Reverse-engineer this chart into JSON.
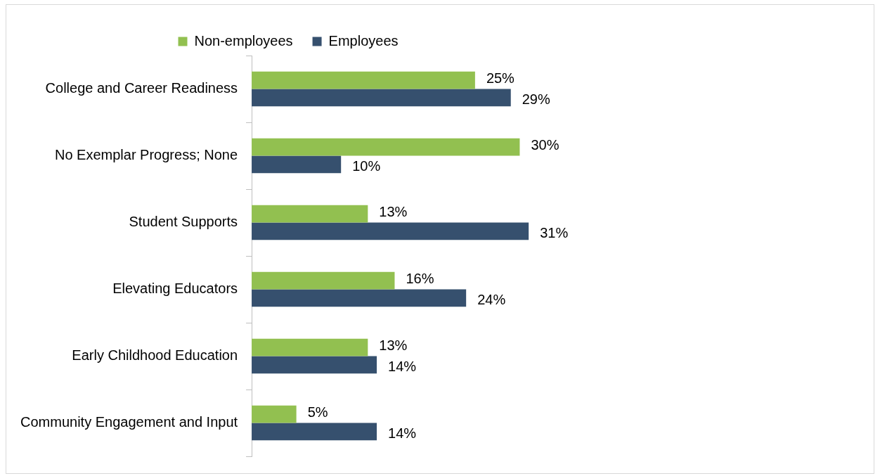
{
  "chart_data": {
    "type": "bar",
    "orientation": "horizontal",
    "categories": [
      "College and Career Readiness",
      "No Exemplar Progress; None",
      "Student Supports",
      "Elevating Educators",
      "Early Childhood Education",
      "Community Engagement and Input"
    ],
    "series": [
      {
        "name": "Non-employees",
        "color": "#92c050",
        "values": [
          25,
          30,
          13,
          16,
          13,
          5
        ],
        "value_labels": [
          "25%",
          "30%",
          "13%",
          "16%",
          "13%",
          "5%"
        ]
      },
      {
        "name": "Employees",
        "color": "#36506e",
        "values": [
          29,
          10,
          31,
          24,
          14,
          14
        ],
        "value_labels": [
          "29%",
          "10%",
          "31%",
          "24%",
          "14%",
          "14%"
        ]
      }
    ],
    "tick_labels": "y",
    "legend": "top",
    "grid": false
  }
}
